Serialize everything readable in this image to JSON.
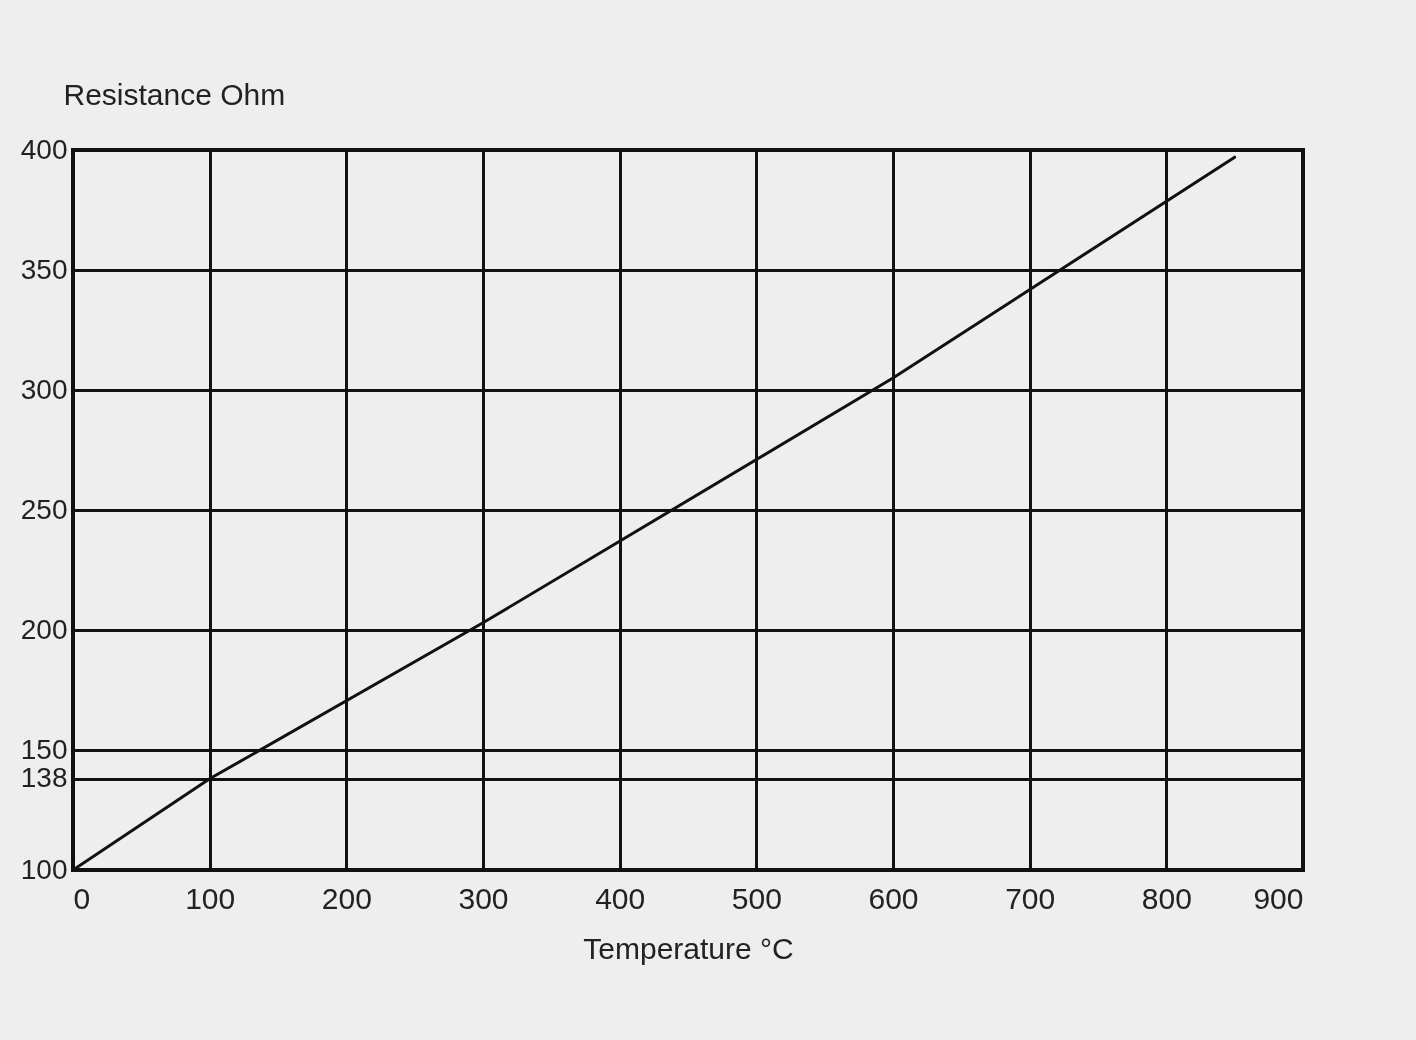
{
  "chart_data": {
    "type": "line",
    "xlabel": "Temperature °C",
    "ylabel": "Resistance Ohm",
    "x": [
      0,
      100,
      300,
      600,
      850
    ],
    "series": [
      {
        "color": "#111111",
        "values": [
          100,
          138,
          203,
          305,
          397
        ]
      }
    ],
    "xlim": [
      0,
      900
    ],
    "xticks": [
      0,
      100,
      200,
      300,
      400,
      500,
      600,
      700,
      800,
      900
    ],
    "ylim": [
      100,
      400
    ],
    "yticks": [
      100,
      138,
      150,
      200,
      250,
      300,
      350,
      400
    ],
    "grid": true,
    "marker": "none",
    "line_style": "solid"
  }
}
